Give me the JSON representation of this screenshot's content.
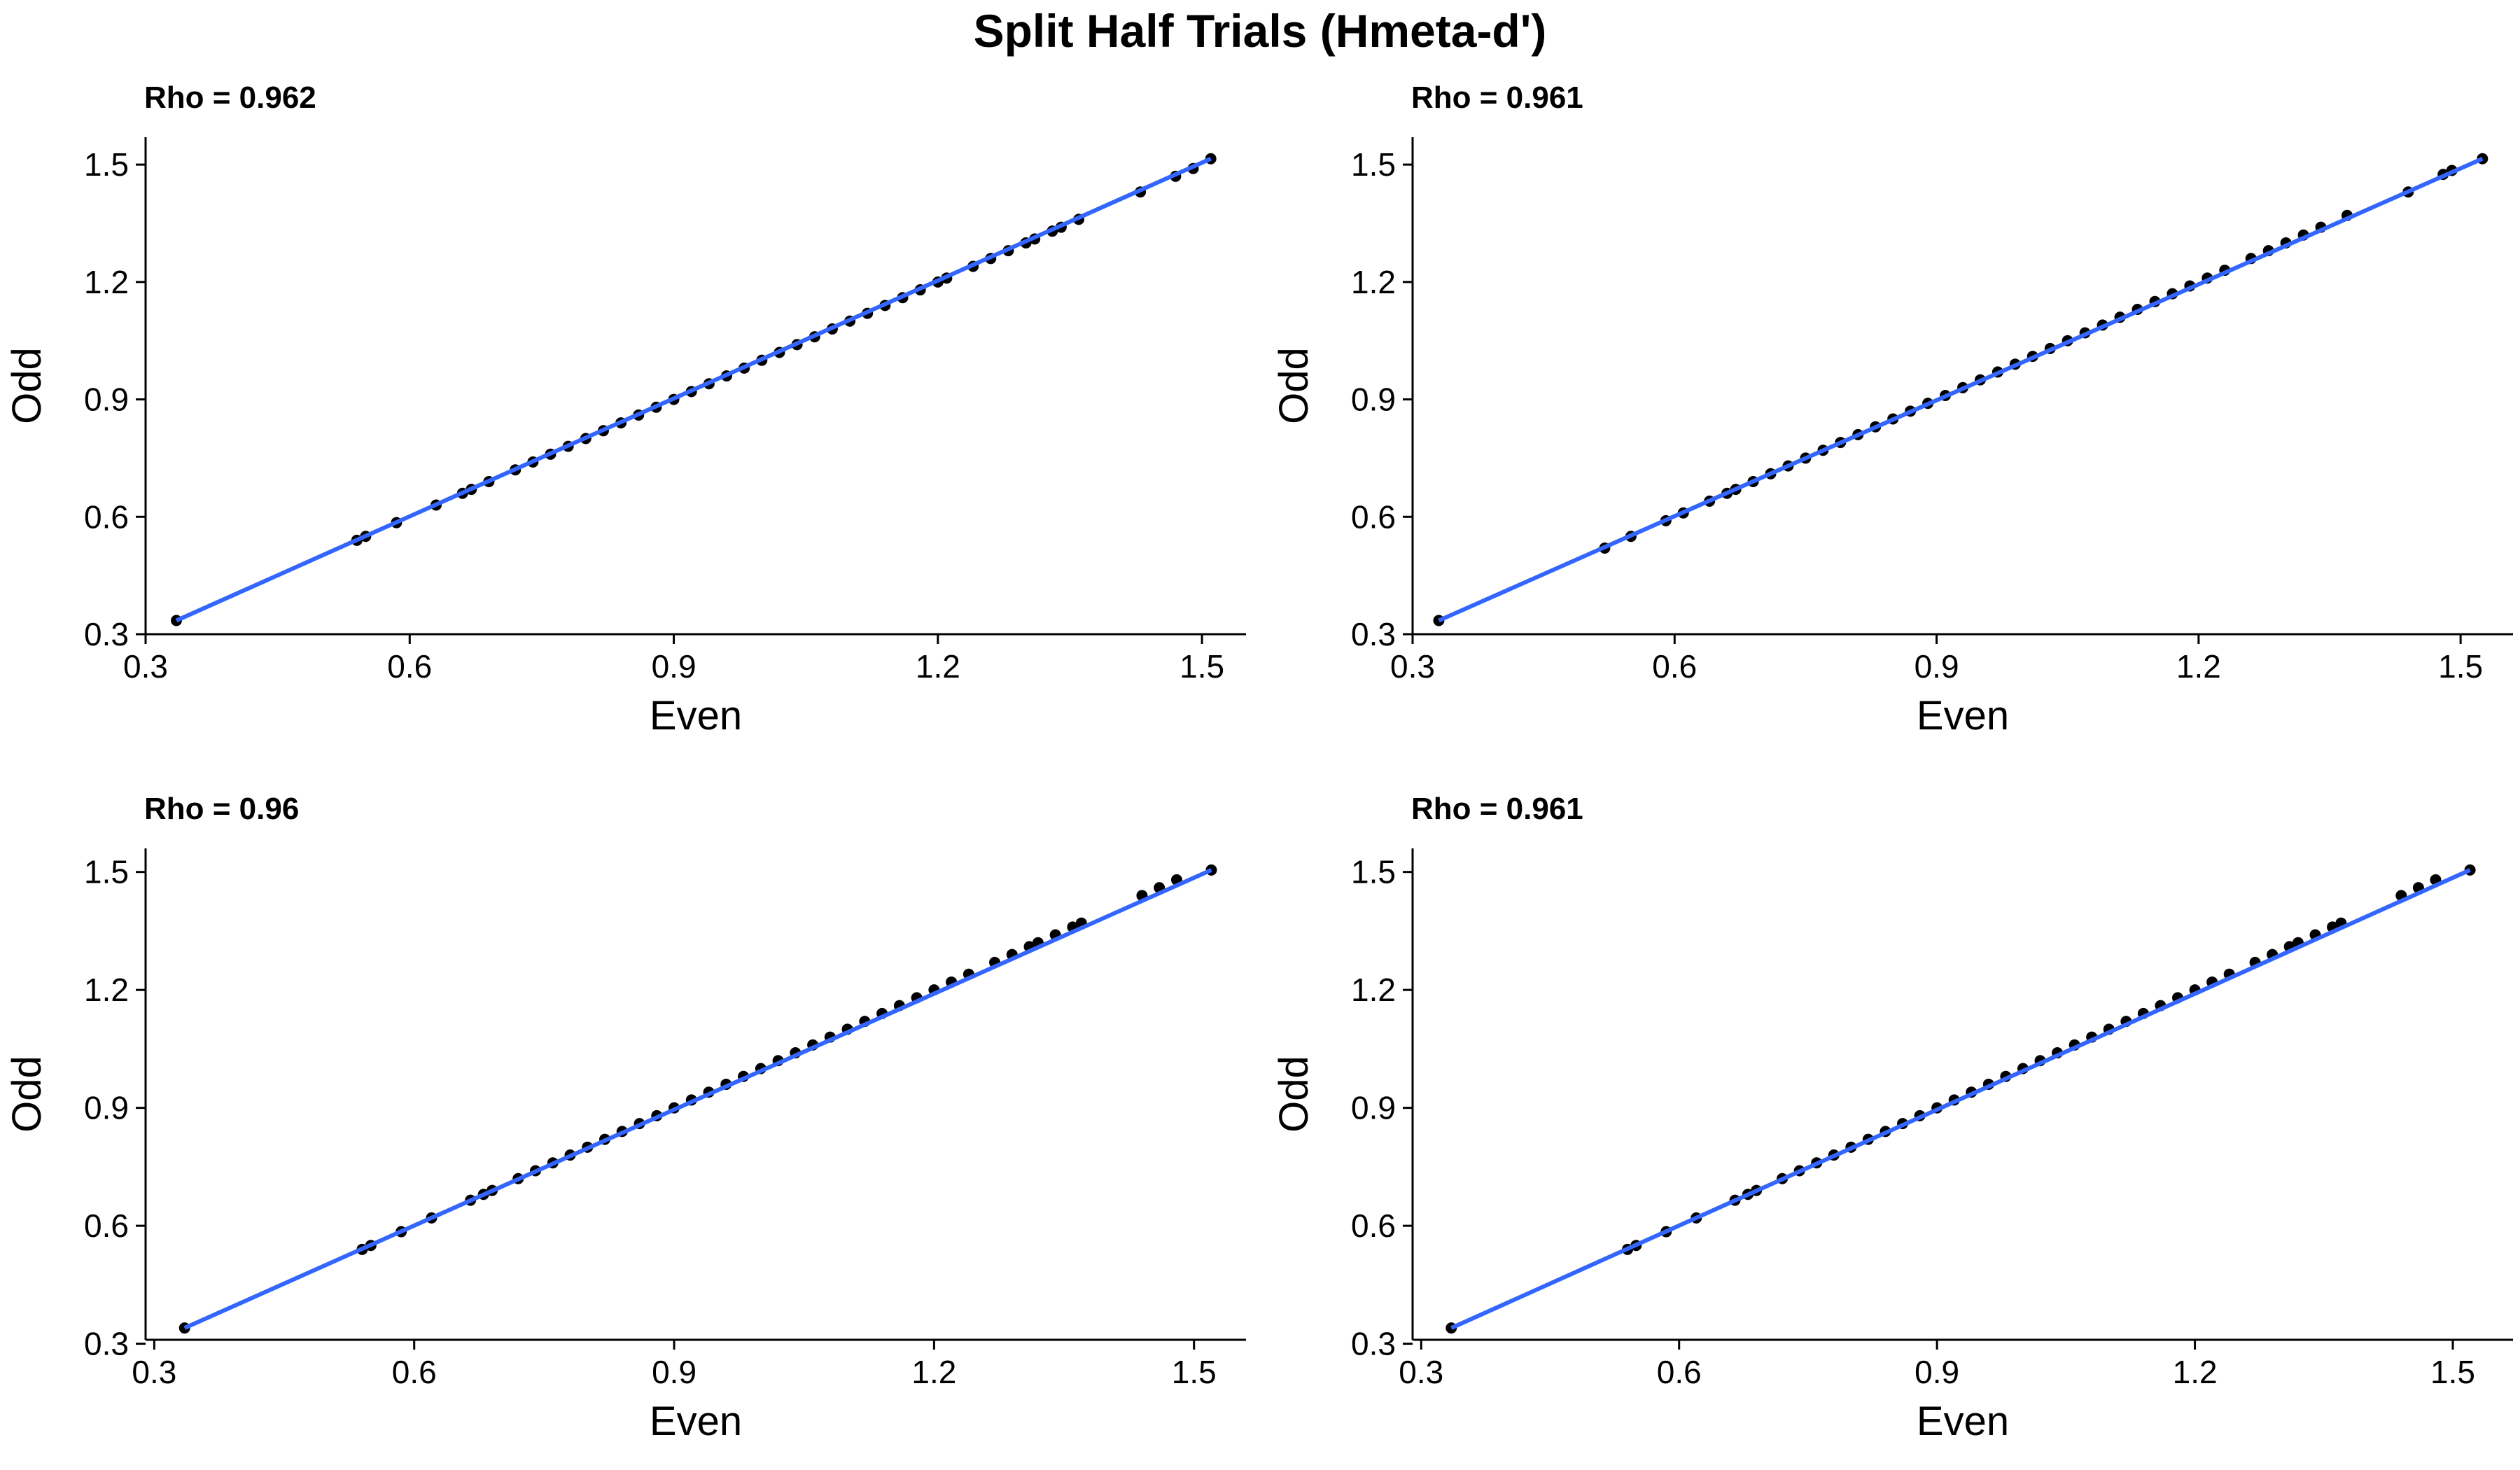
{
  "figure": {
    "title": "Split Half Trials (Hmeta-d')"
  },
  "style": {
    "point_color": "#000000",
    "line_color": "#3366FF",
    "background": "#FFFFFF"
  },
  "chart_data": [
    {
      "type": "scatter",
      "title": "Rho = 0.962",
      "xlabel": "Even",
      "ylabel": "Odd",
      "xlim": [
        0.3,
        1.55
      ],
      "ylim": [
        0.3,
        1.57
      ],
      "xticks": [
        "0.3",
        "0.6",
        "0.9",
        "1.2",
        "1.5"
      ],
      "yticks": [
        "0.3",
        "0.6",
        "0.9",
        "1.2",
        "1.5"
      ],
      "grid": false,
      "trend_line": {
        "x": [
          0.335,
          1.51
        ],
        "y": [
          0.335,
          1.515
        ]
      },
      "points": {
        "x": [
          0.335,
          0.54,
          0.55,
          0.585,
          0.63,
          0.66,
          0.67,
          0.69,
          0.72,
          0.74,
          0.76,
          0.78,
          0.8,
          0.82,
          0.84,
          0.86,
          0.88,
          0.9,
          0.92,
          0.94,
          0.96,
          0.98,
          1.0,
          1.02,
          1.04,
          1.06,
          1.08,
          1.1,
          1.12,
          1.14,
          1.16,
          1.18,
          1.2,
          1.21,
          1.24,
          1.26,
          1.28,
          1.3,
          1.31,
          1.33,
          1.34,
          1.36,
          1.43,
          1.47,
          1.49,
          1.51
        ],
        "y": [
          0.335,
          0.54,
          0.55,
          0.585,
          0.63,
          0.66,
          0.67,
          0.69,
          0.72,
          0.74,
          0.76,
          0.78,
          0.8,
          0.82,
          0.84,
          0.86,
          0.88,
          0.9,
          0.92,
          0.94,
          0.96,
          0.98,
          1.0,
          1.02,
          1.04,
          1.06,
          1.08,
          1.1,
          1.12,
          1.14,
          1.16,
          1.18,
          1.2,
          1.21,
          1.24,
          1.26,
          1.28,
          1.3,
          1.31,
          1.33,
          1.34,
          1.36,
          1.43,
          1.47,
          1.49,
          1.515
        ]
      }
    },
    {
      "type": "scatter",
      "title": "Rho = 0.961",
      "xlabel": "Even",
      "ylabel": "Odd",
      "xlim": [
        0.3,
        1.56
      ],
      "ylim": [
        0.3,
        1.57
      ],
      "xticks": [
        "0.3",
        "0.6",
        "0.9",
        "1.2",
        "1.5"
      ],
      "yticks": [
        "0.3",
        "0.6",
        "0.9",
        "1.2",
        "1.5"
      ],
      "grid": false,
      "trend_line": {
        "x": [
          0.33,
          1.525
        ],
        "y": [
          0.335,
          1.515
        ]
      },
      "points": {
        "x": [
          0.33,
          0.52,
          0.55,
          0.59,
          0.61,
          0.64,
          0.66,
          0.67,
          0.69,
          0.71,
          0.73,
          0.75,
          0.77,
          0.79,
          0.81,
          0.83,
          0.85,
          0.87,
          0.89,
          0.91,
          0.93,
          0.95,
          0.97,
          0.99,
          1.01,
          1.03,
          1.05,
          1.07,
          1.09,
          1.11,
          1.13,
          1.15,
          1.17,
          1.19,
          1.21,
          1.23,
          1.26,
          1.28,
          1.3,
          1.32,
          1.34,
          1.37,
          1.44,
          1.48,
          1.49,
          1.525
        ],
        "y": [
          0.335,
          0.52,
          0.55,
          0.59,
          0.61,
          0.64,
          0.66,
          0.67,
          0.69,
          0.71,
          0.73,
          0.75,
          0.77,
          0.79,
          0.81,
          0.83,
          0.85,
          0.87,
          0.89,
          0.91,
          0.93,
          0.95,
          0.97,
          0.99,
          1.01,
          1.03,
          1.05,
          1.07,
          1.09,
          1.11,
          1.13,
          1.15,
          1.17,
          1.19,
          1.21,
          1.23,
          1.26,
          1.28,
          1.3,
          1.32,
          1.34,
          1.37,
          1.43,
          1.475,
          1.485,
          1.515
        ]
      }
    },
    {
      "type": "scatter",
      "title": "Rho = 0.96",
      "xlabel": "Even",
      "ylabel": "Odd",
      "xlim": [
        0.29,
        1.56
      ],
      "ylim": [
        0.31,
        1.56
      ],
      "xticks": [
        "0.3",
        "0.6",
        "0.9",
        "1.2",
        "1.5"
      ],
      "yticks": [
        "0.3",
        "0.6",
        "0.9",
        "1.2",
        "1.5"
      ],
      "grid": false,
      "trend_line": {
        "x": [
          0.335,
          1.52
        ],
        "y": [
          0.34,
          1.505
        ]
      },
      "points": {
        "x": [
          0.335,
          0.54,
          0.55,
          0.585,
          0.62,
          0.665,
          0.68,
          0.69,
          0.72,
          0.74,
          0.76,
          0.78,
          0.8,
          0.82,
          0.84,
          0.86,
          0.88,
          0.9,
          0.92,
          0.94,
          0.96,
          0.98,
          1.0,
          1.02,
          1.04,
          1.06,
          1.08,
          1.1,
          1.12,
          1.14,
          1.16,
          1.18,
          1.2,
          1.22,
          1.24,
          1.27,
          1.29,
          1.31,
          1.32,
          1.34,
          1.36,
          1.37,
          1.44,
          1.46,
          1.48,
          1.52
        ],
        "y": [
          0.34,
          0.54,
          0.55,
          0.585,
          0.62,
          0.665,
          0.68,
          0.69,
          0.72,
          0.74,
          0.76,
          0.78,
          0.8,
          0.82,
          0.84,
          0.86,
          0.88,
          0.9,
          0.92,
          0.94,
          0.96,
          0.98,
          1.0,
          1.02,
          1.04,
          1.06,
          1.08,
          1.1,
          1.12,
          1.14,
          1.16,
          1.18,
          1.2,
          1.22,
          1.24,
          1.27,
          1.29,
          1.31,
          1.32,
          1.34,
          1.36,
          1.37,
          1.44,
          1.46,
          1.48,
          1.505
        ]
      }
    },
    {
      "type": "scatter",
      "title": "Rho = 0.961",
      "xlabel": "Even",
      "ylabel": "Odd",
      "xlim": [
        0.29,
        1.57
      ],
      "ylim": [
        0.31,
        1.56
      ],
      "xticks": [
        "0.3",
        "0.6",
        "0.9",
        "1.2",
        "1.5"
      ],
      "yticks": [
        "0.3",
        "0.6",
        "0.9",
        "1.2",
        "1.5"
      ],
      "grid": false,
      "trend_line": {
        "x": [
          0.335,
          1.52
        ],
        "y": [
          0.34,
          1.505
        ]
      },
      "points": {
        "x": [
          0.335,
          0.54,
          0.55,
          0.585,
          0.62,
          0.665,
          0.68,
          0.69,
          0.72,
          0.74,
          0.76,
          0.78,
          0.8,
          0.82,
          0.84,
          0.86,
          0.88,
          0.9,
          0.92,
          0.94,
          0.96,
          0.98,
          1.0,
          1.02,
          1.04,
          1.06,
          1.08,
          1.1,
          1.12,
          1.14,
          1.16,
          1.18,
          1.2,
          1.22,
          1.24,
          1.27,
          1.29,
          1.31,
          1.32,
          1.34,
          1.36,
          1.37,
          1.44,
          1.46,
          1.48,
          1.52
        ],
        "y": [
          0.34,
          0.54,
          0.55,
          0.585,
          0.62,
          0.665,
          0.68,
          0.69,
          0.72,
          0.74,
          0.76,
          0.78,
          0.8,
          0.82,
          0.84,
          0.86,
          0.88,
          0.9,
          0.92,
          0.94,
          0.96,
          0.98,
          1.0,
          1.02,
          1.04,
          1.06,
          1.08,
          1.1,
          1.12,
          1.14,
          1.16,
          1.18,
          1.2,
          1.22,
          1.24,
          1.27,
          1.29,
          1.31,
          1.32,
          1.34,
          1.36,
          1.37,
          1.44,
          1.46,
          1.48,
          1.505
        ]
      }
    }
  ]
}
